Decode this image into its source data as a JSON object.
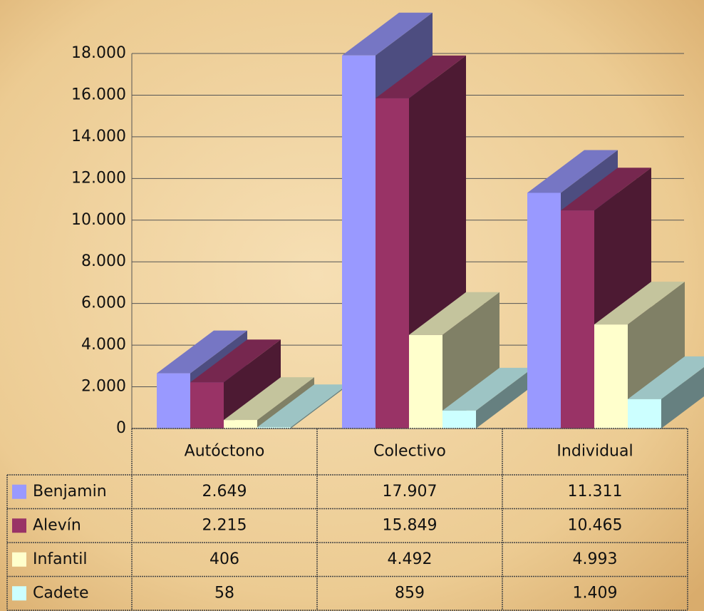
{
  "chart_data": {
    "type": "bar3d",
    "categories": [
      "Autóctono",
      "Colectivo",
      "Individual"
    ],
    "series": [
      {
        "name": "Benjamin",
        "color": "#9999ff",
        "values": [
          2649,
          17907,
          11311
        ],
        "value_labels": [
          "2.649",
          "17.907",
          "11.311"
        ]
      },
      {
        "name": "Alevín",
        "color": "#993366",
        "values": [
          2215,
          15849,
          10465
        ],
        "value_labels": [
          "2.215",
          "15.849",
          "10.465"
        ]
      },
      {
        "name": "Infantil",
        "color": "#ffffcc",
        "values": [
          406,
          4492,
          4993
        ],
        "value_labels": [
          "406",
          "4.492",
          "4.993"
        ]
      },
      {
        "name": "Cadete",
        "color": "#ccffff",
        "values": [
          58,
          859,
          1409
        ],
        "value_labels": [
          "58",
          "859",
          "1.409"
        ]
      }
    ],
    "ylim": [
      0,
      18000
    ],
    "yticks": [
      0,
      {
        "value": 2000,
        "label": "2.000"
      },
      {
        "value": 4000,
        "label": "4.000"
      },
      {
        "value": 6000,
        "label": "6.000"
      },
      {
        "value": 8000,
        "label": "8.000"
      },
      {
        "value": 10000,
        "label": "10.000"
      },
      {
        "value": 12000,
        "label": "12.000"
      },
      {
        "value": 14000,
        "label": "14.000"
      },
      {
        "value": 16000,
        "label": "16.000"
      },
      {
        "value": 18000,
        "label": "18.000"
      }
    ],
    "grid": true
  }
}
